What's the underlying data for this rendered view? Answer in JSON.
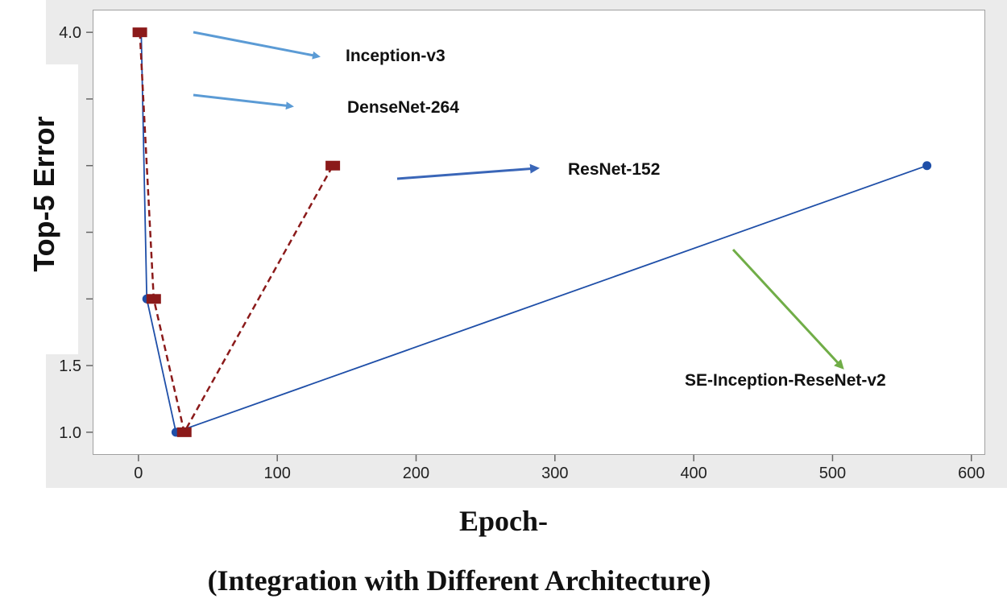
{
  "chart_data": {
    "type": "line",
    "title": "",
    "xlabel": "Epoch-",
    "ylabel": "Top-5 Error",
    "caption": "(Integration with Different Architecture)",
    "xlim": [
      -33,
      610
    ],
    "ylim": [
      0.83,
      4.17
    ],
    "x_ticks": [
      0,
      100,
      200,
      300,
      400,
      500,
      600
    ],
    "y_ticks": [
      {
        "value": 4.0,
        "label": "4.0"
      },
      {
        "value": 1.5,
        "label": "1.5"
      },
      {
        "value": 1.0,
        "label": "1.0"
      }
    ],
    "series": [
      {
        "name": "Series 1 (solid blue)",
        "color": "#1f4fa8",
        "style": "solid",
        "marker": "circle",
        "x": [
          2,
          6,
          27,
          568
        ],
        "y": [
          4.0,
          2.0,
          1.0,
          3.0
        ]
      },
      {
        "name": "Series 2 (dashed red)",
        "color": "#8b1a1a",
        "style": "dashed",
        "marker": "square",
        "x": [
          1,
          11,
          33,
          140
        ],
        "y": [
          4.0,
          2.0,
          1.0,
          3.0
        ]
      }
    ],
    "annotations": [
      {
        "text": "Inception-v3",
        "color": "#5b9bd5"
      },
      {
        "text": "DenseNet-264",
        "color": "#5b9bd5"
      },
      {
        "text": "ResNet-152",
        "color": "#3a66b8"
      },
      {
        "text": "SE-Inception-ReseNet-v2",
        "color": "#70ad47"
      }
    ]
  }
}
